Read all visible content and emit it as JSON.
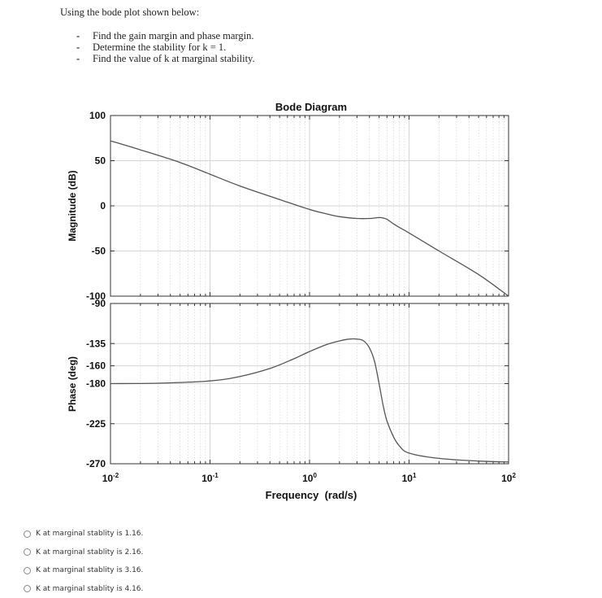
{
  "question": {
    "intro": "Using the bode plot shown below:",
    "items": [
      "Find the gain margin and phase margin.",
      "Determine the stability for k = 1.",
      "Find the value of k at marginal stability."
    ]
  },
  "chart_data": {
    "type": "line",
    "title": "Bode Diagram",
    "xlabel": "Frequency (rad/s)",
    "xscale": "log",
    "xlim": [
      0.01,
      100
    ],
    "x_ticks": [
      "10^-2",
      "10^-1",
      "10^0",
      "10^1",
      "10^2"
    ],
    "grid": true,
    "subplots": [
      {
        "name": "magnitude",
        "ylabel": "Magnitude (dB)",
        "ylim": [
          -100,
          100
        ],
        "y_ticks": [
          100,
          50,
          0,
          -50,
          -100
        ],
        "x": [
          0.01,
          0.02,
          0.05,
          0.1,
          0.2,
          0.5,
          1,
          1.5,
          2,
          3,
          4,
          5,
          5.5,
          6,
          7,
          8,
          10,
          20,
          50,
          100
        ],
        "values": [
          72,
          62,
          48,
          35,
          22,
          7,
          -4,
          -9,
          -12,
          -14,
          -14,
          -13,
          -13.5,
          -15,
          -20,
          -24,
          -30,
          -50,
          -76,
          -100
        ]
      },
      {
        "name": "phase",
        "ylabel": "Phase (deg)",
        "ylim": [
          -270,
          -90
        ],
        "y_ticks": [
          -90,
          -135,
          -160,
          -180,
          -225,
          -270
        ],
        "x": [
          0.01,
          0.03,
          0.1,
          0.2,
          0.4,
          0.7,
          1,
          1.5,
          2,
          2.5,
          3,
          3.5,
          4,
          4.5,
          5,
          5.5,
          6,
          7,
          8,
          10,
          20,
          50,
          100
        ],
        "values": [
          -180,
          -179.5,
          -177,
          -172,
          -163,
          -152,
          -144,
          -136,
          -132,
          -130,
          -130,
          -132,
          -140,
          -155,
          -180,
          -205,
          -222,
          -240,
          -250,
          -258,
          -264,
          -267,
          -268
        ]
      }
    ]
  },
  "labels": {
    "title": "Bode Diagram",
    "xlabel": "Frequency  (rad/s)",
    "mag_ylabel": "Magnitude (dB)",
    "phase_ylabel": "Phase (deg)",
    "mag_ticks": [
      "100",
      "50",
      "0",
      "-50",
      "-100"
    ],
    "phase_ticks": [
      "-90",
      "-135",
      "-160",
      "-180",
      "-225",
      "-270"
    ],
    "x_ticks": [
      {
        "base": "10",
        "exp": "-2"
      },
      {
        "base": "10",
        "exp": "-1"
      },
      {
        "base": "10",
        "exp": "0"
      },
      {
        "base": "10",
        "exp": "1"
      },
      {
        "base": "10",
        "exp": "2"
      }
    ]
  },
  "options": [
    "K at marginal stablity is 1.16.",
    "K at marginal stablity is 2.16.",
    "K at marginal stablity is 3.16.",
    "K at marginal stablity is 4.16."
  ]
}
